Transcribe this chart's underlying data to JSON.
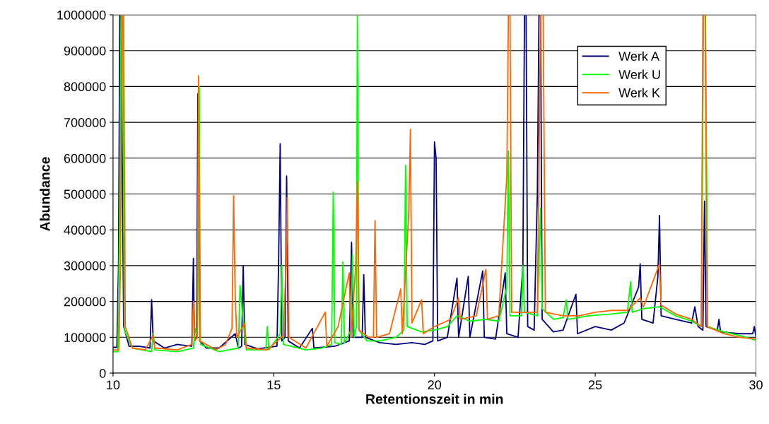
{
  "chart_data": {
    "type": "line",
    "xlabel": "Retentionszeit in min",
    "ylabel": "Abundance",
    "xlim": [
      10,
      30
    ],
    "xticks": [
      10,
      15,
      20,
      25,
      30
    ],
    "ylim": [
      0,
      1000000
    ],
    "yticks": [
      0,
      100000,
      200000,
      300000,
      400000,
      500000,
      600000,
      700000,
      800000,
      900000,
      1000000
    ],
    "grid": "y",
    "legend": "top right",
    "marker": "none",
    "line_style": "solid",
    "series": [
      {
        "name": "Werk A",
        "color": "#000080",
        "x": [
          10.0,
          10.12,
          10.17,
          10.21,
          10.25,
          10.33,
          10.5,
          10.8,
          11.15,
          11.2,
          11.25,
          11.6,
          12.0,
          12.45,
          12.5,
          12.53,
          12.6,
          12.64,
          12.7,
          12.9,
          13.3,
          13.8,
          13.9,
          14.0,
          14.05,
          14.1,
          14.5,
          15.1,
          15.15,
          15.2,
          15.25,
          15.35,
          15.4,
          15.45,
          15.8,
          16.2,
          16.25,
          16.9,
          17.35,
          17.42,
          17.47,
          17.75,
          17.8,
          17.85,
          18.3,
          18.8,
          19.3,
          19.7,
          19.95,
          20.0,
          20.05,
          20.1,
          20.4,
          20.7,
          20.75,
          21.05,
          21.1,
          21.5,
          21.55,
          21.9,
          22.2,
          22.25,
          22.6,
          22.75,
          22.8,
          22.85,
          22.9,
          23.1,
          23.2,
          23.25,
          23.3,
          23.35,
          23.7,
          24.0,
          24.4,
          24.45,
          25.0,
          25.5,
          25.9,
          26.35,
          26.4,
          26.45,
          26.8,
          26.95,
          27.0,
          27.05,
          27.5,
          28.0,
          28.1,
          28.2,
          28.35,
          28.4,
          28.45,
          28.8,
          28.85,
          28.9,
          29.5,
          29.9,
          29.95,
          30.0
        ],
        "values": [
          72000,
          72000,
          300000,
          1000000,
          1000000,
          130000,
          75000,
          75000,
          70000,
          205000,
          90000,
          70000,
          80000,
          75000,
          320000,
          90000,
          100000,
          780000,
          90000,
          70000,
          70000,
          110000,
          70000,
          75000,
          300000,
          80000,
          68000,
          75000,
          305000,
          640000,
          90000,
          100000,
          550000,
          90000,
          70000,
          125000,
          70000,
          75000,
          90000,
          365000,
          100000,
          100000,
          275000,
          100000,
          85000,
          80000,
          85000,
          80000,
          90000,
          645000,
          600000,
          90000,
          100000,
          265000,
          100000,
          270000,
          100000,
          285000,
          100000,
          95000,
          280000,
          110000,
          100000,
          300000,
          1000000,
          1000000,
          130000,
          120000,
          500000,
          1000000,
          1000000,
          150000,
          115000,
          120000,
          220000,
          110000,
          130000,
          120000,
          140000,
          240000,
          305000,
          150000,
          140000,
          270000,
          440000,
          160000,
          150000,
          140000,
          185000,
          130000,
          120000,
          480000,
          130000,
          120000,
          150000,
          115000,
          110000,
          110000,
          130000,
          100000
        ]
      },
      {
        "name": "Werk U",
        "color": "#00ff00",
        "x": [
          10.0,
          10.15,
          10.2,
          10.25,
          10.3,
          10.35,
          10.6,
          11.2,
          11.25,
          11.3,
          12.0,
          12.5,
          12.55,
          12.62,
          12.68,
          12.72,
          13.3,
          13.9,
          13.95,
          14.05,
          14.15,
          14.75,
          14.8,
          14.85,
          15.2,
          15.25,
          15.3,
          16.0,
          16.5,
          16.8,
          16.85,
          16.9,
          17.1,
          17.15,
          17.2,
          17.4,
          17.45,
          17.5,
          17.57,
          17.6,
          17.65,
          17.9,
          18.3,
          18.8,
          19.05,
          19.1,
          19.15,
          19.6,
          20.0,
          20.4,
          20.7,
          21.1,
          21.6,
          22.0,
          22.25,
          22.3,
          22.35,
          22.7,
          22.75,
          22.8,
          23.2,
          23.3,
          23.35,
          23.7,
          24.0,
          24.1,
          24.15,
          24.8,
          25.5,
          26.0,
          26.1,
          26.15,
          26.5,
          27.0,
          27.5,
          28.0,
          28.3,
          28.37,
          28.43,
          28.5,
          29.0,
          29.5,
          30.0
        ],
        "values": [
          60000,
          60000,
          400000,
          1000000,
          1000000,
          120000,
          70000,
          60000,
          110000,
          65000,
          60000,
          70000,
          125000,
          100000,
          800000,
          80000,
          60000,
          70000,
          245000,
          140000,
          65000,
          65000,
          130000,
          65000,
          110000,
          300000,
          80000,
          65000,
          70000,
          80000,
          505000,
          85000,
          80000,
          310000,
          85000,
          120000,
          330000,
          100000,
          130000,
          1000000,
          120000,
          90000,
          90000,
          100000,
          120000,
          580000,
          130000,
          115000,
          120000,
          130000,
          160000,
          145000,
          150000,
          145000,
          240000,
          620000,
          160000,
          160000,
          300000,
          170000,
          160000,
          460000,
          180000,
          150000,
          155000,
          205000,
          150000,
          160000,
          165000,
          170000,
          255000,
          170000,
          180000,
          185000,
          160000,
          145000,
          130000,
          1000000,
          1000000,
          130000,
          115000,
          105000,
          92000
        ]
      },
      {
        "name": "Werk K",
        "color": "#ff6600",
        "x": [
          10.0,
          10.18,
          10.23,
          10.28,
          10.33,
          10.38,
          10.6,
          11.0,
          11.25,
          11.3,
          12.0,
          12.45,
          12.5,
          12.55,
          12.62,
          12.66,
          12.7,
          13.2,
          13.5,
          13.7,
          13.75,
          13.8,
          13.85,
          14.1,
          14.15,
          14.8,
          15.3,
          15.38,
          15.42,
          15.47,
          16.0,
          16.6,
          16.65,
          17.0,
          17.35,
          17.4,
          17.55,
          17.6,
          17.65,
          17.95,
          18.1,
          18.15,
          18.2,
          18.6,
          18.95,
          19.0,
          19.2,
          19.25,
          19.3,
          19.6,
          19.65,
          20.0,
          20.5,
          20.75,
          20.8,
          21.3,
          21.6,
          21.65,
          22.0,
          22.25,
          22.3,
          22.35,
          22.4,
          22.8,
          23.2,
          23.3,
          23.38,
          23.45,
          24.0,
          24.5,
          25.0,
          25.5,
          26.0,
          26.4,
          26.5,
          27.0,
          27.05,
          27.5,
          28.0,
          28.3,
          28.35,
          28.42,
          28.48,
          29.0,
          29.5,
          30.0
        ],
        "values": [
          65000,
          65000,
          300000,
          1000000,
          1000000,
          130000,
          70000,
          65000,
          105000,
          70000,
          65000,
          80000,
          200000,
          90000,
          100000,
          830000,
          90000,
          65000,
          80000,
          125000,
          495000,
          220000,
          100000,
          140000,
          70000,
          65000,
          105000,
          300000,
          490000,
          100000,
          70000,
          170000,
          75000,
          130000,
          280000,
          100000,
          300000,
          535000,
          120000,
          100000,
          100000,
          425000,
          100000,
          110000,
          235000,
          110000,
          450000,
          680000,
          140000,
          205000,
          110000,
          130000,
          150000,
          210000,
          150000,
          160000,
          290000,
          150000,
          160000,
          550000,
          1000000,
          1000000,
          170000,
          170000,
          170000,
          1000000,
          1000000,
          170000,
          160000,
          160000,
          170000,
          175000,
          175000,
          210000,
          185000,
          305000,
          190000,
          165000,
          150000,
          130000,
          1000000,
          1000000,
          130000,
          110000,
          100000,
          95000
        ]
      }
    ]
  }
}
